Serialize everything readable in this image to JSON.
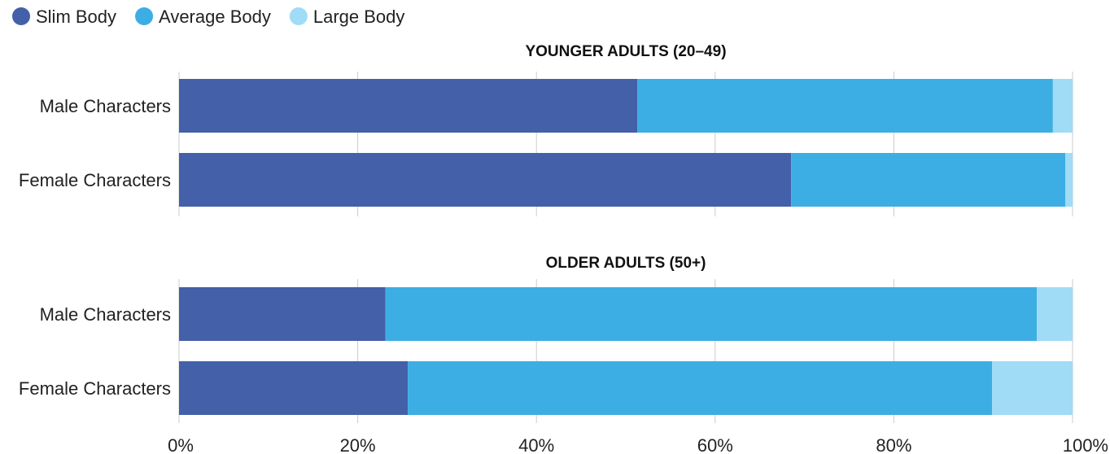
{
  "chart_data": {
    "type": "bar",
    "orientation": "horizontal",
    "stacked": true,
    "xlim": [
      0,
      100
    ],
    "x_ticks": [
      "0%",
      "20%",
      "40%",
      "60%",
      "80%",
      "100%"
    ],
    "x_tick_values": [
      0,
      20,
      40,
      60,
      80,
      100
    ],
    "grid": true,
    "legend_position": "top-left",
    "legend": [
      {
        "name": "Slim Body",
        "color": "#4360a8"
      },
      {
        "name": "Average Body",
        "color": "#3daee3"
      },
      {
        "name": "Large Body",
        "color": "#a0dcf5"
      }
    ],
    "panels": [
      {
        "title": "YOUNGER ADULTS (20–49)",
        "categories": [
          "Male Characters",
          "Female Characters"
        ],
        "series": [
          {
            "name": "Slim Body",
            "values": [
              51.3,
              68.5
            ]
          },
          {
            "name": "Average Body",
            "values": [
              46.5,
              30.7
            ]
          },
          {
            "name": "Large Body",
            "values": [
              2.2,
              0.8
            ]
          }
        ]
      },
      {
        "title": "OLDER ADULTS (50+)",
        "categories": [
          "Male Characters",
          "Female Characters"
        ],
        "series": [
          {
            "name": "Slim Body",
            "values": [
              23.1,
              25.6
            ]
          },
          {
            "name": "Average Body",
            "values": [
              72.9,
              65.4
            ]
          },
          {
            "name": "Large Body",
            "values": [
              4.0,
              9.0
            ]
          }
        ]
      }
    ]
  }
}
